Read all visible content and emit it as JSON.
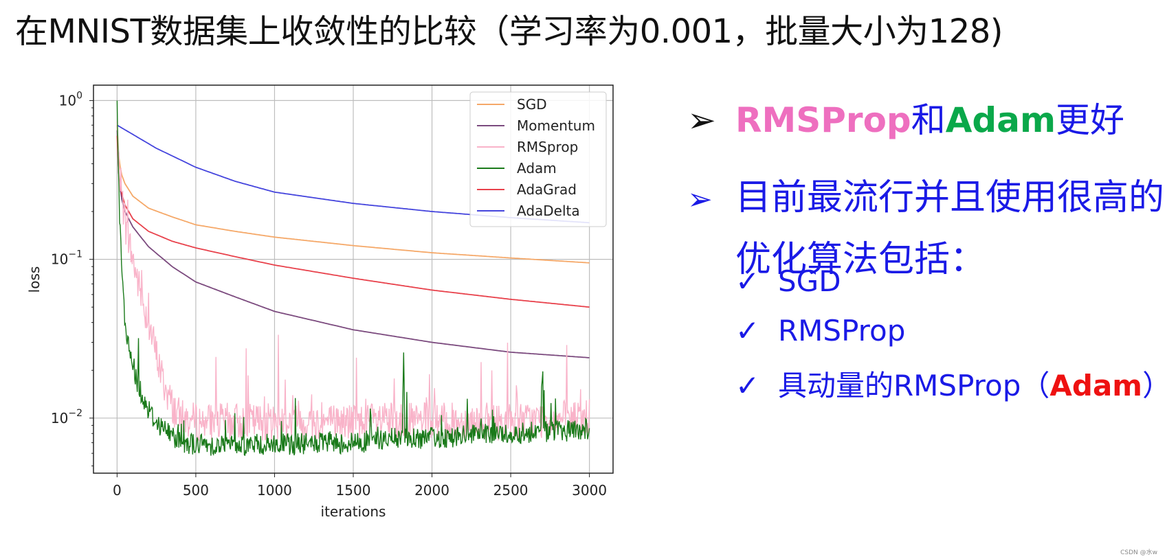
{
  "title": "在MNIST数据集上收敛性的比较（学习率为0.001，批量大小为128)",
  "bullets": {
    "b1_part1": "RMSProp",
    "b1_part2": "和",
    "b1_part3": "Adam",
    "b1_part4": "更好",
    "b2_line1": "目前最流行并且使用很高的",
    "b2_line2": "优化算法包括：",
    "sub1": "SGD",
    "sub2": "RMSProp",
    "sub3_part1": "具动量的RMSProp（",
    "sub3_part2": "Adam",
    "sub3_part3": "）"
  },
  "watermark": "CSDN @水w",
  "chart_data": {
    "type": "line",
    "xlabel": "iterations",
    "ylabel": "loss",
    "xlim": [
      -150,
      3150
    ],
    "ylim": [
      0.0045,
      1.25
    ],
    "yscale": "log",
    "grid": true,
    "legend": "top-right",
    "x_ticks": [
      0,
      500,
      1000,
      1500,
      2000,
      2500,
      3000
    ],
    "y_ticks": [
      1,
      0.1,
      0.01
    ],
    "y_tick_labels": [
      "10",
      "10",
      "10"
    ],
    "y_tick_exponents": [
      "0",
      "−1",
      "−2"
    ],
    "series": [
      {
        "name": "SGD",
        "color": "#f5a868",
        "x": [
          0,
          10,
          25,
          50,
          100,
          200,
          350,
          500,
          750,
          1000,
          1500,
          2000,
          2500,
          3000
        ],
        "y": [
          0.7,
          0.45,
          0.35,
          0.3,
          0.25,
          0.21,
          0.185,
          0.165,
          0.15,
          0.138,
          0.122,
          0.11,
          0.102,
          0.095
        ]
      },
      {
        "name": "Momentum",
        "color": "#7b4a7e",
        "x": [
          0,
          10,
          25,
          50,
          100,
          200,
          350,
          500,
          750,
          1000,
          1500,
          2000,
          2500,
          3000
        ],
        "y": [
          0.65,
          0.35,
          0.25,
          0.2,
          0.16,
          0.12,
          0.09,
          0.072,
          0.058,
          0.047,
          0.036,
          0.03,
          0.026,
          0.024
        ]
      },
      {
        "name": "RMSprop",
        "color": "#f9b3c9",
        "noisy": true,
        "x": [
          0,
          10,
          30,
          60,
          100,
          150,
          200,
          250,
          300,
          350,
          400,
          500,
          750,
          1000,
          1500,
          2000,
          2500,
          3000
        ],
        "y": [
          0.7,
          0.4,
          0.25,
          0.15,
          0.1,
          0.06,
          0.04,
          0.025,
          0.016,
          0.012,
          0.01,
          0.0095,
          0.0095,
          0.0095,
          0.0095,
          0.0095,
          0.0095,
          0.01
        ]
      },
      {
        "name": "Adam",
        "color": "#1a7a1a",
        "noisy": true,
        "x": [
          0,
          5,
          15,
          30,
          50,
          80,
          120,
          170,
          230,
          300,
          400,
          500,
          750,
          1000,
          1500,
          1800,
          2000,
          2500,
          3000
        ],
        "y": [
          1.0,
          0.5,
          0.2,
          0.08,
          0.04,
          0.025,
          0.018,
          0.013,
          0.01,
          0.0085,
          0.0072,
          0.0068,
          0.0068,
          0.0068,
          0.007,
          0.0075,
          0.0075,
          0.008,
          0.0085
        ]
      },
      {
        "name": "AdaGrad",
        "color": "#e8414b",
        "x": [
          0,
          10,
          25,
          50,
          100,
          200,
          350,
          500,
          750,
          1000,
          1500,
          2000,
          2500,
          3000
        ],
        "y": [
          0.6,
          0.35,
          0.27,
          0.22,
          0.18,
          0.15,
          0.13,
          0.118,
          0.104,
          0.092,
          0.076,
          0.064,
          0.056,
          0.05
        ]
      },
      {
        "name": "AdaDelta",
        "color": "#4444dd",
        "x": [
          0,
          250,
          500,
          750,
          1000,
          1500,
          2000,
          2500,
          3000
        ],
        "y": [
          0.7,
          0.5,
          0.38,
          0.31,
          0.265,
          0.225,
          0.2,
          0.183,
          0.17
        ]
      }
    ]
  }
}
